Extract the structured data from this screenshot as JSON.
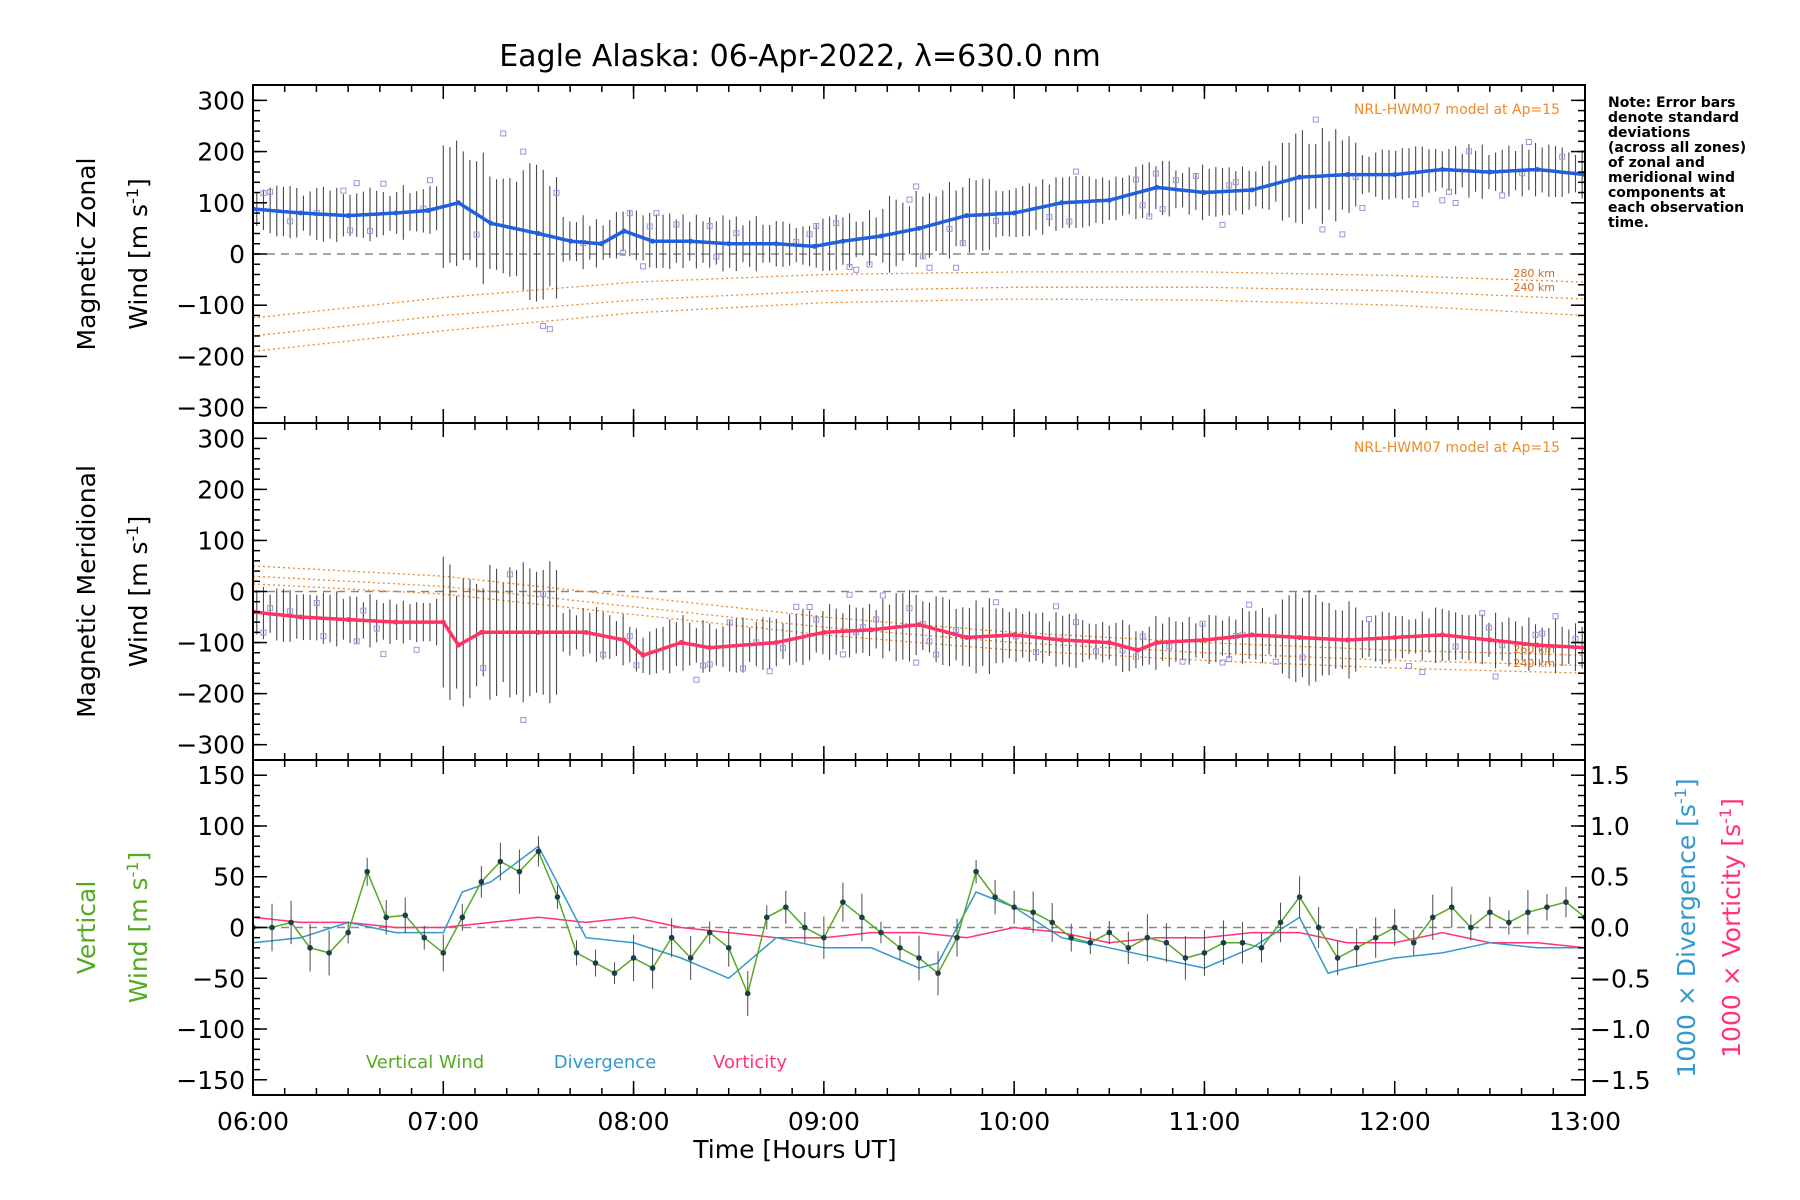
{
  "title": "Eagle Alaska: 06-Apr-2022, λ=630.0 nm",
  "note": [
    "Note: Error bars",
    "denote standard",
    "deviations",
    "(across all zones)",
    "of zonal and",
    "meridional wind",
    "components at",
    "each observation",
    "time."
  ],
  "colors": {
    "zonal": "#1f5fe0",
    "meridional": "#ff3366",
    "vertical": "#55aa22",
    "divergence": "#3399cc",
    "vorticity": "#ff3377",
    "model": "#f08a24",
    "scatter": "#9a93dd",
    "errorbar": "#4a4a4a",
    "dashed": "#888888"
  },
  "chart_data": [
    {
      "type": "scatter",
      "panel": "zonal",
      "ylabel_line1": "Magnetic Zonal",
      "ylabel_line2": "Wind [m s",
      "ylabel_sup": "-1",
      "ylabel_end": "]",
      "ylim": [
        -330,
        330
      ],
      "yticks": [
        300,
        200,
        100,
        0,
        -100,
        -200,
        -300
      ],
      "yticklabels": [
        "300",
        "200",
        "100",
        "0",
        "−100",
        "−200",
        "−300"
      ],
      "model_label": "NRL-HWM07 model at Ap=15",
      "model_alt_labels": [
        "280 km",
        "240 km"
      ],
      "series": [
        {
          "name": "zonal wind",
          "x": [
            6.0,
            6.25,
            6.5,
            6.75,
            6.92,
            7.08,
            7.25,
            7.5,
            7.67,
            7.83,
            7.95,
            8.1,
            8.3,
            8.5,
            8.75,
            8.95,
            9.1,
            9.3,
            9.5,
            9.75,
            10.0,
            10.25,
            10.5,
            10.75,
            11.0,
            11.25,
            11.5,
            11.75,
            12.0,
            12.25,
            12.5,
            12.75,
            13.0
          ],
          "y": [
            88,
            80,
            75,
            80,
            85,
            100,
            60,
            40,
            25,
            20,
            45,
            25,
            25,
            20,
            20,
            15,
            25,
            35,
            50,
            75,
            80,
            100,
            105,
            130,
            120,
            125,
            150,
            155,
            155,
            165,
            160,
            165,
            155
          ]
        },
        {
          "name": "model 280 km",
          "x": [
            6.0,
            7.0,
            8.0,
            9.0,
            10.0,
            11.0,
            12.0,
            13.0
          ],
          "y": [
            -125,
            -85,
            -55,
            -40,
            -35,
            -35,
            -42,
            -55
          ]
        },
        {
          "name": "model 260 km",
          "x": [
            6.0,
            7.0,
            8.0,
            9.0,
            10.0,
            11.0,
            12.0,
            13.0
          ],
          "y": [
            -160,
            -120,
            -90,
            -72,
            -65,
            -65,
            -72,
            -88
          ]
        },
        {
          "name": "model 240 km",
          "x": [
            6.0,
            7.0,
            8.0,
            9.0,
            10.0,
            11.0,
            12.0,
            13.0
          ],
          "y": [
            -190,
            -150,
            -115,
            -95,
            -88,
            -90,
            -100,
            -120
          ]
        }
      ]
    },
    {
      "type": "scatter",
      "panel": "meridional",
      "ylabel_line1": "Magnetic Meridional",
      "ylabel_line2": "Wind [m s",
      "ylabel_sup": "-1",
      "ylabel_end": "]",
      "ylim": [
        -330,
        330
      ],
      "yticks": [
        300,
        200,
        100,
        0,
        -100,
        -200,
        -300
      ],
      "yticklabels": [
        "300",
        "200",
        "100",
        "0",
        "−100",
        "−200",
        "−300"
      ],
      "model_label": "NRL-HWM07 model at Ap=15",
      "model_alt_labels": [
        "260 km",
        "240 km"
      ],
      "series": [
        {
          "name": "meridional wind",
          "x": [
            6.0,
            6.25,
            6.5,
            6.75,
            7.0,
            7.08,
            7.2,
            7.5,
            7.75,
            7.95,
            8.05,
            8.25,
            8.4,
            8.75,
            9.0,
            9.25,
            9.5,
            9.75,
            10.0,
            10.25,
            10.5,
            10.65,
            10.75,
            11.0,
            11.25,
            11.5,
            11.75,
            12.0,
            12.25,
            12.5,
            12.75,
            13.0
          ],
          "y": [
            -40,
            -50,
            -55,
            -60,
            -60,
            -105,
            -80,
            -80,
            -80,
            -95,
            -125,
            -100,
            -110,
            -100,
            -80,
            -75,
            -65,
            -90,
            -85,
            -95,
            -100,
            -115,
            -100,
            -95,
            -85,
            -90,
            -95,
            -90,
            -85,
            -95,
            -105,
            -110
          ]
        },
        {
          "name": "model 280 km",
          "x": [
            6.0,
            7.0,
            8.0,
            9.0,
            10.0,
            11.0,
            12.0,
            13.0
          ],
          "y": [
            50,
            30,
            -10,
            -50,
            -80,
            -100,
            -115,
            -125
          ]
        },
        {
          "name": "model 260 km",
          "x": [
            6.0,
            7.0,
            8.0,
            9.0,
            10.0,
            11.0,
            12.0,
            13.0
          ],
          "y": [
            30,
            10,
            -30,
            -70,
            -100,
            -120,
            -135,
            -145
          ]
        },
        {
          "name": "model 240 km",
          "x": [
            6.0,
            7.0,
            8.0,
            9.0,
            10.0,
            11.0,
            12.0,
            13.0
          ],
          "y": [
            15,
            -5,
            -45,
            -85,
            -115,
            -135,
            -150,
            -160
          ]
        }
      ]
    },
    {
      "type": "line",
      "panel": "vertical",
      "ylabel_line1": "Vertical",
      "ylabel_line2": "Wind [m s",
      "ylabel_sup": "-1",
      "ylabel_end": "]",
      "ylim": [
        -165,
        165
      ],
      "yticks": [
        150,
        100,
        50,
        0,
        -50,
        -100,
        -150
      ],
      "yticklabels": [
        "150",
        "100",
        "50",
        "0",
        "−50",
        "−100",
        "−150"
      ],
      "y2lim": [
        -1.65,
        1.65
      ],
      "y2ticks": [
        1.5,
        1.0,
        0.5,
        0.0,
        -0.5,
        -1.0,
        -1.5
      ],
      "y2ticklabels": [
        "1.5",
        "1.0",
        "0.5",
        "0.0",
        "−0.5",
        "−1.0",
        "−1.5"
      ],
      "y2label_div_a": "1000 × Divergence [s",
      "y2label_vor_a": "1000 × Vorticity [s",
      "y2label_sup": "-1",
      "y2label_end": "]",
      "legend": [
        "Vertical Wind",
        "Divergence",
        "Vorticity"
      ],
      "series": [
        {
          "name": "Vertical Wind",
          "x": [
            6.0,
            6.1,
            6.2,
            6.3,
            6.4,
            6.5,
            6.6,
            6.7,
            6.8,
            6.9,
            7.0,
            7.1,
            7.2,
            7.3,
            7.4,
            7.5,
            7.6,
            7.7,
            7.8,
            7.9,
            8.0,
            8.1,
            8.2,
            8.3,
            8.4,
            8.5,
            8.6,
            8.7,
            8.8,
            8.9,
            9.0,
            9.1,
            9.2,
            9.3,
            9.4,
            9.5,
            9.6,
            9.7,
            9.8,
            9.9,
            10.0,
            10.1,
            10.2,
            10.3,
            10.4,
            10.5,
            10.6,
            10.7,
            10.8,
            10.9,
            11.0,
            11.1,
            11.2,
            11.3,
            11.4,
            11.5,
            11.6,
            11.7,
            11.8,
            11.9,
            12.0,
            12.1,
            12.2,
            12.3,
            12.4,
            12.5,
            12.6,
            12.7,
            12.8,
            12.9,
            13.0
          ],
          "y": [
            0,
            0,
            5,
            -20,
            -25,
            -5,
            55,
            10,
            12,
            -10,
            -25,
            10,
            45,
            65,
            55,
            75,
            30,
            -25,
            -35,
            -45,
            -30,
            -40,
            -10,
            -30,
            -5,
            -20,
            -65,
            10,
            20,
            0,
            -10,
            25,
            10,
            -5,
            -20,
            -30,
            -45,
            -10,
            55,
            30,
            20,
            15,
            5,
            -10,
            -15,
            -5,
            -20,
            -10,
            -15,
            -30,
            -25,
            -15,
            -15,
            -20,
            5,
            30,
            0,
            -30,
            -20,
            -10,
            0,
            -15,
            10,
            20,
            0,
            15,
            5,
            15,
            20,
            25,
            10
          ]
        },
        {
          "name": "Divergence",
          "x": [
            6.0,
            6.25,
            6.5,
            6.75,
            7.0,
            7.1,
            7.25,
            7.5,
            7.75,
            8.0,
            8.25,
            8.5,
            8.75,
            9.0,
            9.25,
            9.5,
            9.6,
            9.8,
            10.0,
            10.25,
            10.5,
            10.75,
            11.0,
            11.25,
            11.5,
            11.65,
            11.75,
            12.0,
            12.25,
            12.5,
            12.75,
            13.0
          ],
          "y": [
            -0.15,
            -0.1,
            0.05,
            -0.05,
            -0.05,
            0.35,
            0.45,
            0.8,
            -0.1,
            -0.15,
            -0.3,
            -0.5,
            -0.1,
            -0.2,
            -0.2,
            -0.4,
            -0.35,
            0.35,
            0.2,
            -0.1,
            -0.2,
            -0.3,
            -0.4,
            -0.2,
            0.1,
            -0.45,
            -0.4,
            -0.3,
            -0.25,
            -0.15,
            -0.2,
            -0.2
          ]
        },
        {
          "name": "Vorticity",
          "x": [
            6.0,
            6.25,
            6.5,
            6.75,
            7.0,
            7.25,
            7.5,
            7.75,
            8.0,
            8.25,
            8.5,
            8.75,
            9.0,
            9.25,
            9.5,
            9.75,
            10.0,
            10.25,
            10.5,
            10.75,
            11.0,
            11.25,
            11.5,
            11.75,
            12.0,
            12.25,
            12.5,
            12.75,
            13.0
          ],
          "y": [
            0.1,
            0.05,
            0.05,
            0.0,
            0.0,
            0.05,
            0.1,
            0.05,
            0.1,
            0.0,
            -0.05,
            -0.1,
            -0.1,
            -0.05,
            -0.05,
            -0.1,
            0.0,
            -0.05,
            -0.15,
            -0.1,
            -0.1,
            -0.05,
            -0.05,
            -0.15,
            -0.15,
            -0.05,
            -0.15,
            -0.15,
            -0.2
          ]
        }
      ]
    }
  ],
  "xaxis": {
    "label": "Time [Hours UT]",
    "range": [
      6,
      13
    ],
    "ticks": [
      6,
      7,
      8,
      9,
      10,
      11,
      12,
      13
    ],
    "ticklabels": [
      "06:00",
      "07:00",
      "08:00",
      "09:00",
      "10:00",
      "11:00",
      "12:00",
      "13:00"
    ]
  }
}
